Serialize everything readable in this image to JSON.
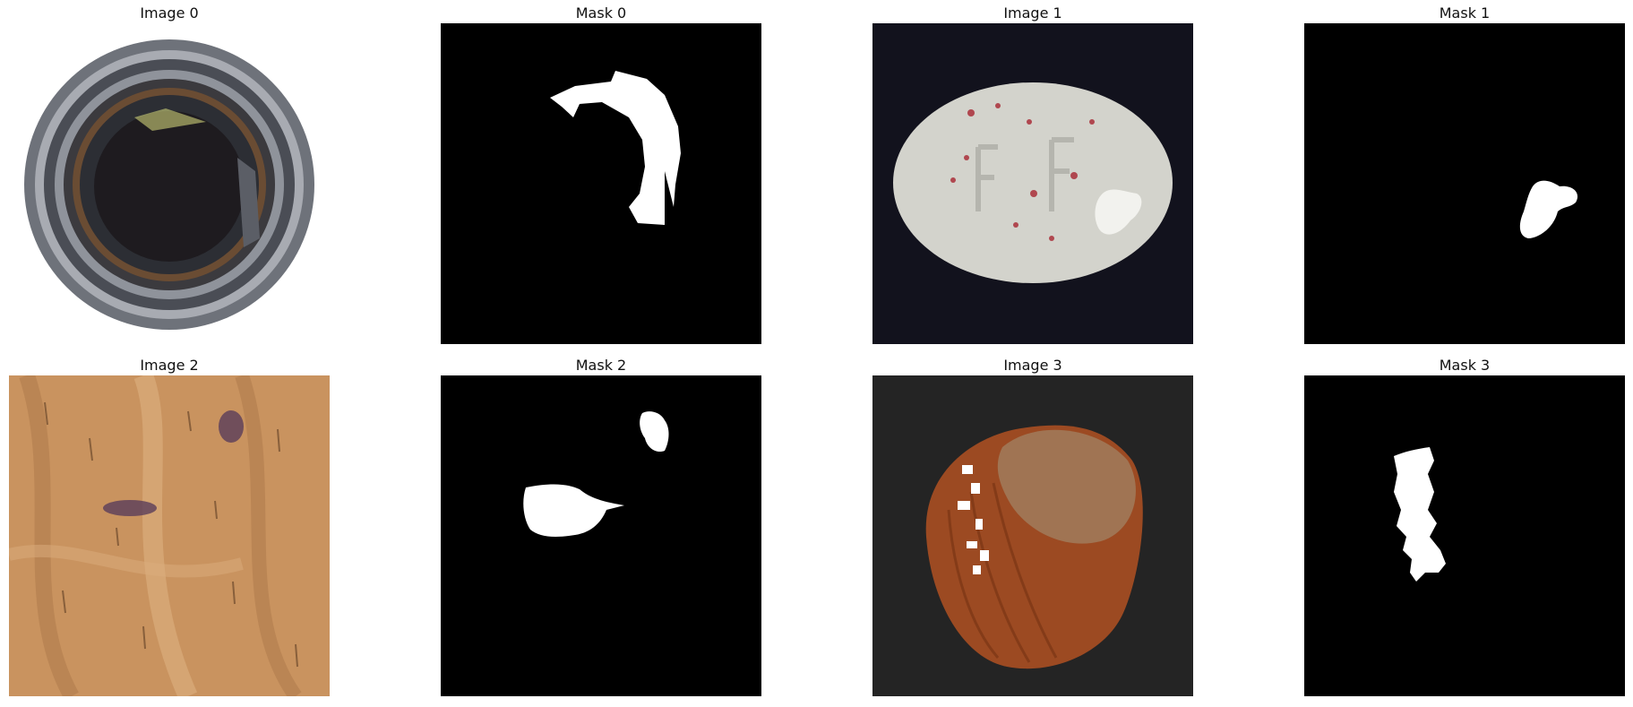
{
  "panels": [
    {
      "title": "Image 0"
    },
    {
      "title": "Mask 0"
    },
    {
      "title": "Image 1"
    },
    {
      "title": "Mask 1"
    },
    {
      "title": "Image 2"
    },
    {
      "title": "Mask 2"
    },
    {
      "title": "Image 3"
    },
    {
      "title": "Mask 3"
    }
  ]
}
